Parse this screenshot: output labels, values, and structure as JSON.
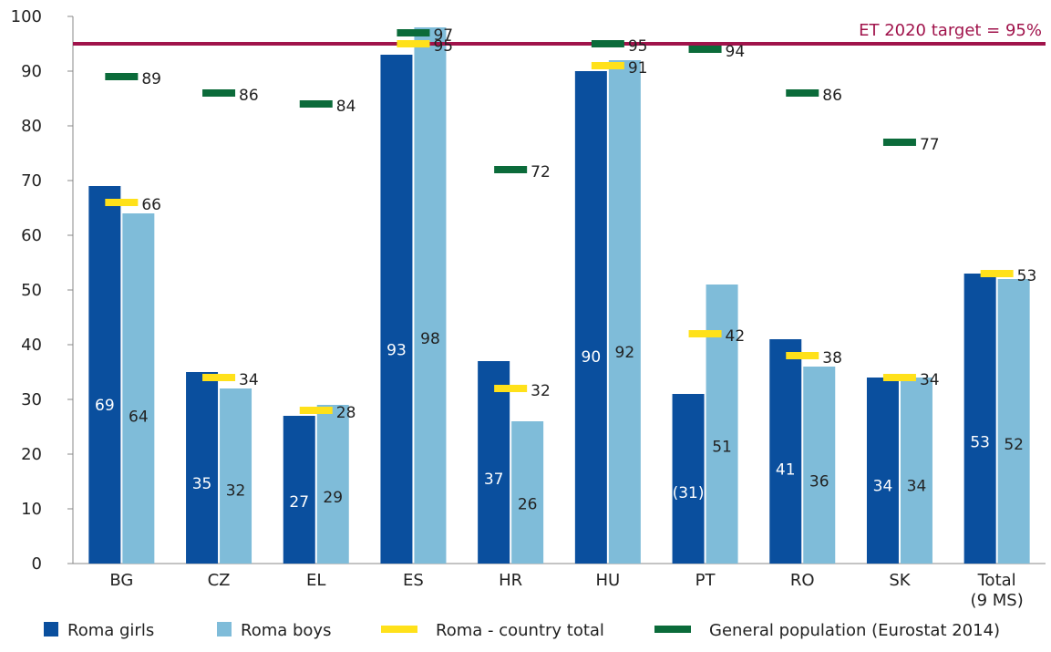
{
  "chart_data": {
    "type": "bar",
    "categories": [
      "BG",
      "CZ",
      "EL",
      "ES",
      "HR",
      "HU",
      "PT",
      "RO",
      "SK",
      "Total (9 MS)"
    ],
    "category_lines": [
      [
        "BG"
      ],
      [
        "CZ"
      ],
      [
        "EL"
      ],
      [
        "ES"
      ],
      [
        "HR"
      ],
      [
        "HU"
      ],
      [
        "PT"
      ],
      [
        "RO"
      ],
      [
        "SK"
      ],
      [
        "Total",
        "(9 MS)"
      ]
    ],
    "series": [
      {
        "name": "Roma  girls",
        "color": "#0a4f9e",
        "values": [
          69,
          35,
          27,
          93,
          37,
          90,
          31,
          41,
          34,
          53
        ],
        "labels": [
          "69",
          "35",
          "27",
          "93",
          "37",
          "90",
          "(31)",
          "41",
          "34",
          "53"
        ]
      },
      {
        "name": "Roma boys",
        "color": "#7fbcd9",
        "values": [
          64,
          32,
          29,
          98,
          26,
          92,
          51,
          36,
          34,
          52
        ],
        "labels": [
          "64",
          "32",
          "29",
          "98",
          "26",
          "92",
          "51",
          "36",
          "34",
          "52"
        ]
      }
    ],
    "markers": [
      {
        "name": "Roma - country total",
        "color": "#ffe11a",
        "values": [
          66,
          34,
          28,
          95,
          32,
          91,
          42,
          38,
          34,
          53
        ],
        "labels": [
          "66",
          "34",
          "28",
          "95",
          "32",
          "91",
          "42",
          "38",
          "34",
          "53"
        ]
      },
      {
        "name": "General population (Eurostat 2014)",
        "color": "#0b6b3a",
        "values": [
          89,
          86,
          84,
          97,
          72,
          95,
          94,
          86,
          77,
          null
        ],
        "labels": [
          "89",
          "86",
          "84",
          "97",
          "72",
          "95",
          "94",
          "86",
          "77",
          ""
        ]
      }
    ],
    "reference_line": {
      "value": 95,
      "label": "ET 2020 target = 95%",
      "color": "#a0134b"
    },
    "ylim": [
      0,
      100
    ],
    "yticks": [
      0,
      10,
      20,
      30,
      40,
      50,
      60,
      70,
      80,
      90,
      100
    ],
    "grid": false,
    "legend_position": "bottom",
    "xlabel": "",
    "ylabel": ""
  }
}
